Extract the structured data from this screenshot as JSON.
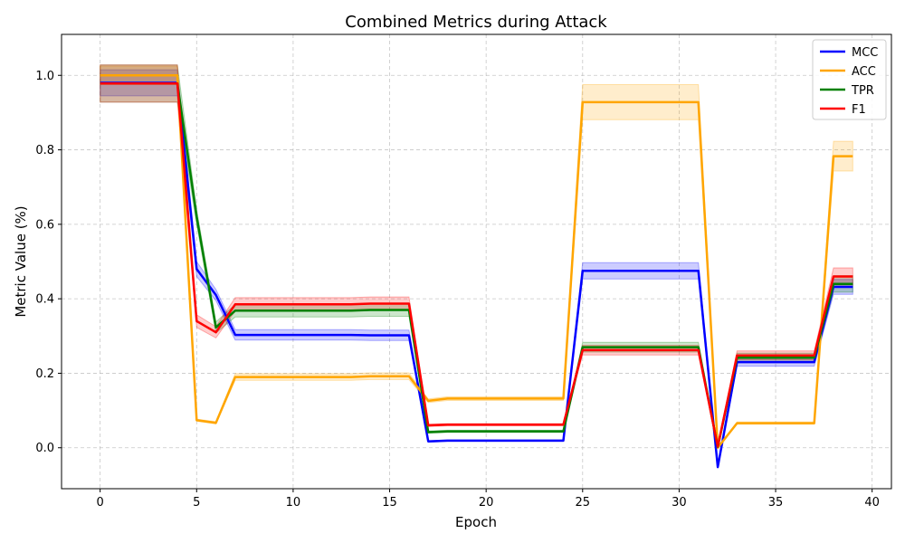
{
  "chart_data": {
    "type": "line",
    "title": "Combined Metrics during Attack",
    "xlabel": "Epoch",
    "ylabel": "Metric Value (%)",
    "xlim": [
      -2,
      41
    ],
    "ylim": [
      -0.11,
      1.11
    ],
    "xticks": [
      0,
      5,
      10,
      15,
      20,
      25,
      30,
      35,
      40
    ],
    "yticks": [
      0.0,
      0.2,
      0.4,
      0.6,
      0.8,
      1.0
    ],
    "grid": true,
    "legend_position": "upper-right",
    "x": [
      0,
      1,
      2,
      3,
      4,
      5,
      6,
      7,
      8,
      9,
      10,
      11,
      12,
      13,
      14,
      15,
      16,
      17,
      18,
      19,
      20,
      21,
      22,
      23,
      24,
      25,
      26,
      27,
      28,
      29,
      30,
      31,
      32,
      33,
      34,
      35,
      36,
      37,
      38,
      39
    ],
    "series": [
      {
        "name": "MCC",
        "color": "#0000ff",
        "values": [
          0.98,
          0.98,
          0.98,
          0.98,
          0.98,
          0.48,
          0.41,
          0.303,
          0.303,
          0.303,
          0.303,
          0.303,
          0.303,
          0.303,
          0.302,
          0.302,
          0.302,
          0.017,
          0.019,
          0.019,
          0.019,
          0.019,
          0.019,
          0.019,
          0.019,
          0.475,
          0.475,
          0.475,
          0.475,
          0.475,
          0.475,
          0.475,
          -0.052,
          0.23,
          0.23,
          0.23,
          0.23,
          0.23,
          0.432,
          0.432
        ],
        "band": [
          0.035,
          0.035,
          0.035,
          0.035,
          0.035,
          0.02,
          0.015,
          0.014,
          0.014,
          0.014,
          0.014,
          0.014,
          0.014,
          0.014,
          0.014,
          0.014,
          0.014,
          0.002,
          0.002,
          0.002,
          0.002,
          0.002,
          0.002,
          0.002,
          0.002,
          0.022,
          0.022,
          0.022,
          0.022,
          0.022,
          0.022,
          0.022,
          0.002,
          0.011,
          0.011,
          0.011,
          0.011,
          0.011,
          0.02,
          0.02
        ]
      },
      {
        "name": "ACC",
        "color": "#ffa500",
        "values": [
          1.0,
          1.0,
          1.0,
          1.0,
          1.0,
          0.074,
          0.067,
          0.19,
          0.19,
          0.19,
          0.19,
          0.19,
          0.19,
          0.19,
          0.192,
          0.192,
          0.192,
          0.126,
          0.132,
          0.132,
          0.132,
          0.132,
          0.132,
          0.132,
          0.132,
          0.928,
          0.928,
          0.928,
          0.928,
          0.928,
          0.928,
          0.928,
          0.0,
          0.066,
          0.066,
          0.066,
          0.066,
          0.066,
          0.783,
          0.783
        ],
        "band": [
          0.025,
          0.025,
          0.025,
          0.025,
          0.025,
          0.003,
          0.003,
          0.009,
          0.009,
          0.009,
          0.009,
          0.009,
          0.009,
          0.009,
          0.009,
          0.009,
          0.009,
          0.005,
          0.005,
          0.005,
          0.005,
          0.005,
          0.005,
          0.005,
          0.005,
          0.047,
          0.047,
          0.047,
          0.047,
          0.047,
          0.047,
          0.047,
          0.0,
          0.003,
          0.003,
          0.003,
          0.003,
          0.003,
          0.04,
          0.04
        ]
      },
      {
        "name": "TPR",
        "color": "#008000",
        "values": [
          0.978,
          0.978,
          0.978,
          0.978,
          0.978,
          0.62,
          0.323,
          0.368,
          0.368,
          0.368,
          0.368,
          0.368,
          0.368,
          0.368,
          0.37,
          0.37,
          0.37,
          0.042,
          0.044,
          0.044,
          0.044,
          0.044,
          0.044,
          0.044,
          0.044,
          0.27,
          0.27,
          0.27,
          0.27,
          0.27,
          0.27,
          0.27,
          0.002,
          0.242,
          0.242,
          0.242,
          0.242,
          0.242,
          0.44,
          0.44
        ],
        "band": [
          0.05,
          0.05,
          0.05,
          0.05,
          0.05,
          0.02,
          0.015,
          0.017,
          0.017,
          0.017,
          0.017,
          0.017,
          0.017,
          0.017,
          0.017,
          0.017,
          0.017,
          0.003,
          0.003,
          0.003,
          0.003,
          0.003,
          0.003,
          0.003,
          0.003,
          0.013,
          0.013,
          0.013,
          0.013,
          0.013,
          0.013,
          0.013,
          0.001,
          0.012,
          0.012,
          0.012,
          0.012,
          0.012,
          0.022,
          0.022
        ]
      },
      {
        "name": "F1",
        "color": "#ff0000",
        "values": [
          0.978,
          0.978,
          0.978,
          0.978,
          0.978,
          0.34,
          0.31,
          0.385,
          0.385,
          0.385,
          0.385,
          0.385,
          0.385,
          0.385,
          0.387,
          0.387,
          0.387,
          0.06,
          0.062,
          0.062,
          0.062,
          0.062,
          0.062,
          0.062,
          0.062,
          0.262,
          0.262,
          0.262,
          0.262,
          0.262,
          0.262,
          0.262,
          0.003,
          0.248,
          0.248,
          0.248,
          0.248,
          0.248,
          0.46,
          0.46
        ],
        "band": [
          0.05,
          0.05,
          0.05,
          0.05,
          0.05,
          0.017,
          0.015,
          0.018,
          0.018,
          0.018,
          0.018,
          0.018,
          0.018,
          0.018,
          0.018,
          0.018,
          0.018,
          0.003,
          0.003,
          0.003,
          0.003,
          0.003,
          0.003,
          0.003,
          0.003,
          0.013,
          0.013,
          0.013,
          0.013,
          0.013,
          0.013,
          0.013,
          0.001,
          0.012,
          0.012,
          0.012,
          0.012,
          0.012,
          0.023,
          0.023
        ]
      }
    ]
  }
}
